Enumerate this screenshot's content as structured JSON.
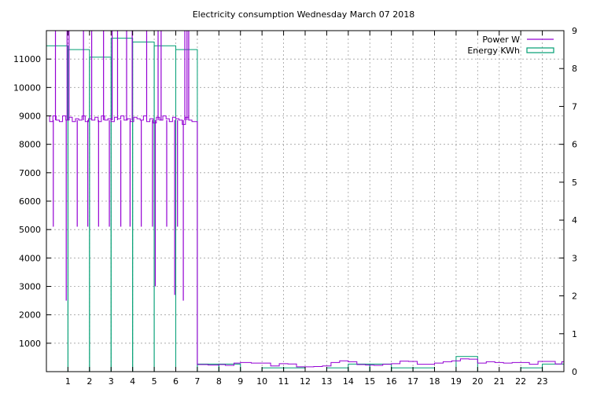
{
  "colors": {
    "power": "#9400D3",
    "energy": "#009E73",
    "grid": "#a0a0a0",
    "axis": "#000000",
    "background": "#ffffff"
  },
  "chart_data": {
    "type": "line",
    "title": "Electricity consumption Wednesday March 07 2018",
    "grid": true,
    "legend_position": "top-right",
    "x_ticks": [
      1,
      2,
      3,
      4,
      5,
      6,
      7,
      8,
      9,
      10,
      11,
      12,
      13,
      14,
      15,
      16,
      17,
      18,
      19,
      20,
      21,
      22,
      23
    ],
    "y_left": {
      "range": [
        0,
        12000
      ],
      "ticks": [
        1000,
        2000,
        3000,
        4000,
        5000,
        6000,
        7000,
        8000,
        9000,
        10000,
        11000
      ]
    },
    "y_right": {
      "range": [
        0,
        9
      ],
      "ticks": [
        0,
        1,
        2,
        3,
        4,
        5,
        6,
        7,
        8,
        9
      ]
    },
    "series": [
      {
        "name": "Power W",
        "axis": "left",
        "style": "line",
        "baseline_x": [
          0,
          0.15,
          0.3,
          0.45,
          0.6,
          0.75,
          0.9,
          1.05,
          1.2,
          1.35,
          1.5,
          1.65,
          1.8,
          1.95,
          2.1,
          2.25,
          2.4,
          2.55,
          2.7,
          2.85,
          3.0,
          3.15,
          3.3,
          3.45,
          3.6,
          3.75,
          3.9,
          4.05,
          4.2,
          4.35,
          4.5,
          4.65,
          4.8,
          4.95,
          5.1,
          5.25,
          5.4,
          5.55,
          5.7,
          5.85,
          6.0,
          6.15,
          6.3,
          6.45,
          6.6,
          6.75,
          6.9,
          7.0
        ],
        "baseline_y": [
          9000,
          8800,
          9000,
          8850,
          8800,
          9000,
          8850,
          8950,
          8800,
          8900,
          8850,
          9000,
          8800,
          8900,
          8850,
          8950,
          8800,
          9000,
          8850,
          8900,
          8800,
          8950,
          8900,
          9000,
          8850,
          8900,
          8800,
          8950,
          8900,
          8850,
          9000,
          8800,
          8900,
          8750,
          8950,
          8850,
          9000,
          8900,
          8800,
          8950,
          8900,
          8850,
          8700,
          8950,
          8850,
          8800,
          8800,
          8800
        ],
        "spikes": [
          {
            "x": 0.32,
            "y": 5100
          },
          {
            "x": 0.42,
            "y": 12000
          },
          {
            "x": 0.92,
            "y": 2500
          },
          {
            "x": 0.96,
            "y": 12000
          },
          {
            "x": 1.05,
            "y": 12000
          },
          {
            "x": 1.43,
            "y": 5100
          },
          {
            "x": 1.72,
            "y": 12000
          },
          {
            "x": 1.92,
            "y": 5100
          },
          {
            "x": 2.1,
            "y": 12000
          },
          {
            "x": 2.42,
            "y": 5100
          },
          {
            "x": 2.65,
            "y": 12000
          },
          {
            "x": 2.92,
            "y": 5100
          },
          {
            "x": 3.05,
            "y": 12000
          },
          {
            "x": 3.3,
            "y": 12000
          },
          {
            "x": 3.45,
            "y": 5100
          },
          {
            "x": 3.72,
            "y": 12000
          },
          {
            "x": 3.88,
            "y": 5100
          },
          {
            "x": 3.98,
            "y": 12000
          },
          {
            "x": 4.4,
            "y": 5100
          },
          {
            "x": 4.65,
            "y": 12000
          },
          {
            "x": 4.92,
            "y": 5100
          },
          {
            "x": 5.05,
            "y": 3000
          },
          {
            "x": 5.18,
            "y": 12000
          },
          {
            "x": 5.32,
            "y": 12000
          },
          {
            "x": 5.58,
            "y": 5100
          },
          {
            "x": 5.95,
            "y": 2700
          },
          {
            "x": 6.08,
            "y": 5100
          },
          {
            "x": 6.35,
            "y": 2500
          },
          {
            "x": 6.42,
            "y": 12000
          },
          {
            "x": 6.52,
            "y": 12000
          },
          {
            "x": 6.6,
            "y": 12000
          }
        ],
        "tail_x": [
          7.0,
          7.5,
          8.0,
          8.3,
          8.7,
          9.0,
          9.5,
          10.0,
          10.4,
          10.8,
          11.2,
          11.6,
          12.0,
          12.4,
          12.8,
          13.2,
          13.6,
          14.0,
          14.4,
          14.8,
          15.2,
          15.6,
          16.0,
          16.4,
          16.8,
          17.2,
          17.6,
          18.0,
          18.4,
          18.8,
          19.2,
          19.6,
          20.0,
          20.4,
          20.8,
          21.2,
          21.6,
          22.0,
          22.4,
          22.8,
          23.2,
          23.6,
          23.9
        ],
        "tail_y": [
          250,
          230,
          250,
          220,
          300,
          320,
          300,
          300,
          200,
          280,
          270,
          170,
          170,
          180,
          200,
          320,
          380,
          350,
          250,
          230,
          220,
          260,
          280,
          370,
          360,
          260,
          260,
          300,
          350,
          380,
          450,
          440,
          300,
          350,
          320,
          300,
          320,
          320,
          260,
          360,
          360,
          270,
          350
        ]
      },
      {
        "name": "Energy KWh",
        "axis": "right",
        "style": "boxes",
        "x": [
          0,
          1,
          2,
          3,
          4,
          5,
          6,
          7,
          8,
          9,
          10,
          11,
          12,
          13,
          14,
          15,
          16,
          17,
          18,
          19,
          20,
          21,
          22,
          23
        ],
        "values": [
          8.6,
          8.5,
          8.3,
          8.8,
          8.7,
          8.6,
          8.5,
          0.2,
          0.2,
          0.0,
          0.1,
          0.1,
          0.0,
          0.1,
          0.2,
          0.2,
          0.1,
          0.1,
          0.0,
          0.4,
          0.0,
          0.0,
          0.1,
          0.2
        ]
      }
    ]
  }
}
